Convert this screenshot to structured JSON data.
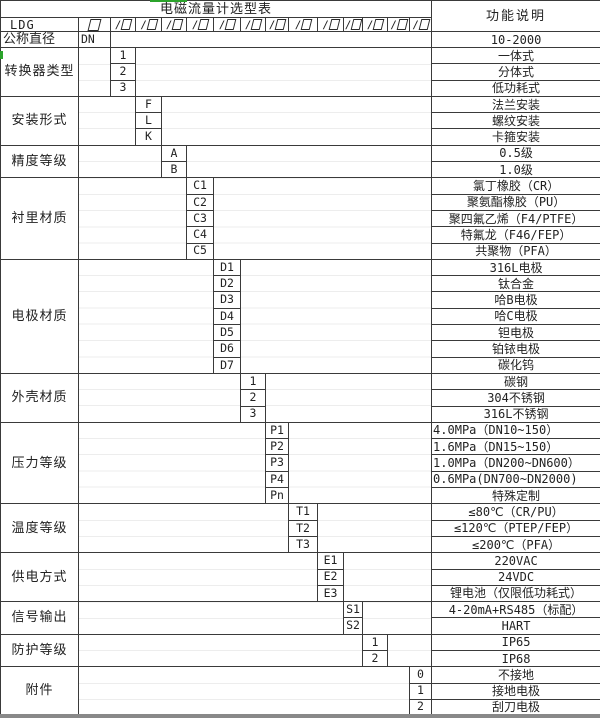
{
  "title": "电磁流量计选型表",
  "desc_header": "功能说明",
  "model_prefix": "LDG",
  "model_slots": [
    "□",
    "/□",
    "/□",
    "/□",
    "/□",
    "/□",
    "/□",
    "/□",
    "/□",
    "/□",
    "/□",
    "/□",
    "/□",
    "/□"
  ],
  "groups": [
    {
      "label": "公称直径",
      "lalign": "left",
      "code_col": 0,
      "items": [
        {
          "code": "DN",
          "desc": "10-2000"
        }
      ]
    },
    {
      "label": "转换器类型",
      "code_col": 1,
      "items": [
        {
          "code": "1",
          "desc": "一体式"
        },
        {
          "code": "2",
          "desc": "分体式"
        },
        {
          "code": "3",
          "desc": "低功耗式"
        }
      ]
    },
    {
      "label": "安装形式",
      "code_col": 2,
      "items": [
        {
          "code": "F",
          "desc": "法兰安装"
        },
        {
          "code": "L",
          "desc": "螺纹安装"
        },
        {
          "code": "K",
          "desc": "卡箍安装"
        }
      ]
    },
    {
      "label": "精度等级",
      "code_col": 3,
      "items": [
        {
          "code": "A",
          "desc": "0.5级"
        },
        {
          "code": "B",
          "desc": "1.0级"
        }
      ]
    },
    {
      "label": "衬里材质",
      "code_col": 4,
      "items": [
        {
          "code": "C1",
          "desc": "氯丁橡胶（CR）"
        },
        {
          "code": "C2",
          "desc": "聚氨酯橡胶（PU）"
        },
        {
          "code": "C3",
          "desc": "聚四氟乙烯（F4/PTFE）"
        },
        {
          "code": "C4",
          "desc": "特氟龙（F46/FEP）"
        },
        {
          "code": "C5",
          "desc": "共聚物（PFA）"
        }
      ]
    },
    {
      "label": "电极材质",
      "code_col": 5,
      "items": [
        {
          "code": "D1",
          "desc": "316L电极"
        },
        {
          "code": "D2",
          "desc": "钛合金"
        },
        {
          "code": "D3",
          "desc": "哈B电极"
        },
        {
          "code": "D4",
          "desc": "哈C电极"
        },
        {
          "code": "D5",
          "desc": "钽电极"
        },
        {
          "code": "D6",
          "desc": "铂铱电极"
        },
        {
          "code": "D7",
          "desc": "碳化钨"
        }
      ]
    },
    {
      "label": "外壳材质",
      "code_col": 6,
      "items": [
        {
          "code": "1",
          "desc": "碳钢"
        },
        {
          "code": "2",
          "desc": "304不锈钢"
        },
        {
          "code": "3",
          "desc": "316L不锈钢"
        }
      ]
    },
    {
      "label": "压力等级",
      "code_col": 7,
      "items": [
        {
          "code": "P1",
          "desc": "4.0MPa（DN10~150）",
          "align": "left"
        },
        {
          "code": "P2",
          "desc": "1.6MPa（DN15~150）",
          "align": "left"
        },
        {
          "code": "P3",
          "desc": "1.0MPa（DN200~DN600）",
          "align": "left"
        },
        {
          "code": "P4",
          "desc": "0.6MPa(DN700~DN2000)",
          "align": "left"
        },
        {
          "code": "Pn",
          "desc": "特殊定制"
        }
      ]
    },
    {
      "label": "温度等级",
      "code_col": 8,
      "items": [
        {
          "code": "T1",
          "desc": "≤80℃（CR/PU）"
        },
        {
          "code": "T2",
          "desc": "≤120℃（PTEP/FEP）"
        },
        {
          "code": "T3",
          "desc": "≤200℃（PFA）"
        }
      ]
    },
    {
      "label": "供电方式",
      "code_col": 9,
      "items": [
        {
          "code": "E1",
          "desc": "220VAC"
        },
        {
          "code": "E2",
          "desc": "24VDC"
        },
        {
          "code": "E3",
          "desc": "锂电池（仅限低功耗式）"
        }
      ]
    },
    {
      "label": "信号输出",
      "code_col": 10,
      "items": [
        {
          "code": "S1",
          "desc": "4-20mA+RS485（标配）"
        },
        {
          "code": "S2",
          "desc": "HART"
        }
      ]
    },
    {
      "label": "防护等级",
      "code_col": 11,
      "items": [
        {
          "code": "1",
          "desc": "IP65"
        },
        {
          "code": "2",
          "desc": "IP68"
        }
      ]
    },
    {
      "label": "附件",
      "code_col": 13,
      "items": [
        {
          "code": "0",
          "desc": "不接地"
        },
        {
          "code": "1",
          "desc": "接地电极"
        },
        {
          "code": "2",
          "desc": "刮刀电极"
        }
      ]
    }
  ]
}
